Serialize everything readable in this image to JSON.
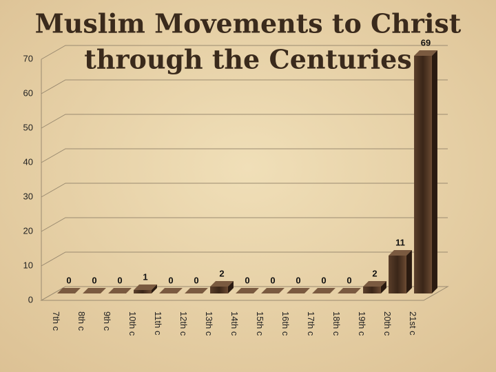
{
  "chart_data": {
    "type": "bar",
    "title": [
      "Muslim Movements to Christ",
      "through the Centuries"
    ],
    "categories": [
      "7th c",
      "8th c",
      "9th c",
      "10th c",
      "11th c",
      "12th c",
      "13th c",
      "14th c",
      "15th c",
      "16th c",
      "17th c",
      "18th c",
      "19th c",
      "20th c",
      "21st c"
    ],
    "values": [
      0,
      0,
      0,
      1,
      0,
      0,
      2,
      0,
      0,
      0,
      0,
      0,
      2,
      11,
      69
    ],
    "color": "#4a3222",
    "ylim": [
      0,
      70
    ],
    "yticks": [
      0,
      10,
      20,
      30,
      40,
      50,
      60,
      70
    ],
    "grid": true
  }
}
